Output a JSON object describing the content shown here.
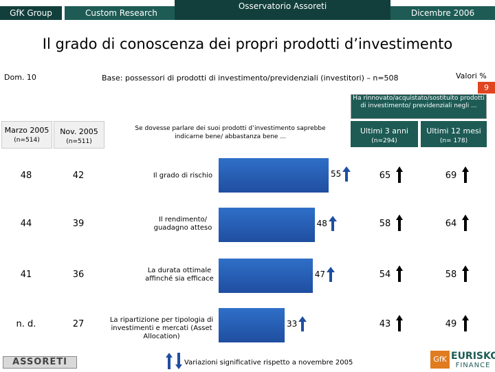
{
  "header": {
    "company": "GfK Group",
    "division": "Custom Research",
    "project": "Osservatorio Assoreti",
    "date": "Dicembre 2006",
    "colors": {
      "dark": "#1e5b55",
      "darkest": "#123f3b"
    }
  },
  "title": "Il grado di conoscenza dei propri prodotti d’investimento",
  "dom": "Dom. 10",
  "base": "Base: possessori di prodotti di investimento/previdenziali (investitori) – n=508",
  "values_label": "Valori %",
  "page_number": "9",
  "renewal_box": "Ha rinnovato/acquistato/sostituito prodotti di investimento/ previdenziali negli ...",
  "columns": {
    "marzo": {
      "label": "Marzo 2005",
      "n": "(n=514)"
    },
    "nov": {
      "label": "Nov. 2005",
      "n": "(n=511)"
    },
    "ult3": {
      "label": "Ultimi 3 anni",
      "n": "(n=294)"
    },
    "ult12": {
      "label": "Ultimi 12 mesi",
      "n": "(n= 178)"
    }
  },
  "question": "Se dovesse parlare dei suoi prodotti d’investimento saprebbe indicarne bene/ abbastanza bene ...",
  "chart_data": {
    "type": "bar",
    "orientation": "horizontal",
    "categories": [
      "Il grado di rischio",
      "Il rendimento/ guadagno atteso",
      "La durata ottimale affinché sia efficace",
      "La ripartizione per tipologia di investimenti e mercati (Asset Allocation)"
    ],
    "values": [
      55,
      48,
      47,
      33
    ],
    "value_colors": [
      "#000000",
      "#000000",
      "#000000",
      "#000000"
    ],
    "xlim": [
      0,
      60
    ]
  },
  "rows": [
    {
      "marzo": "48",
      "nov": "42",
      "ult3": "65",
      "ult12": "69"
    },
    {
      "marzo": "44",
      "nov": "39",
      "ult3": "58",
      "ult12": "64"
    },
    {
      "marzo": "41",
      "nov": "36",
      "ult3": "54",
      "ult12": "58"
    },
    {
      "marzo": "n. d.",
      "nov": "27",
      "ult3": "43",
      "ult12": "49"
    }
  ],
  "footer": {
    "logo": "ASSORETI",
    "legend": "Variazioni significative rispetto a novembre 2005",
    "gfk": "GfK",
    "eurisko": "EURISKO",
    "finance": "FINANCE"
  }
}
